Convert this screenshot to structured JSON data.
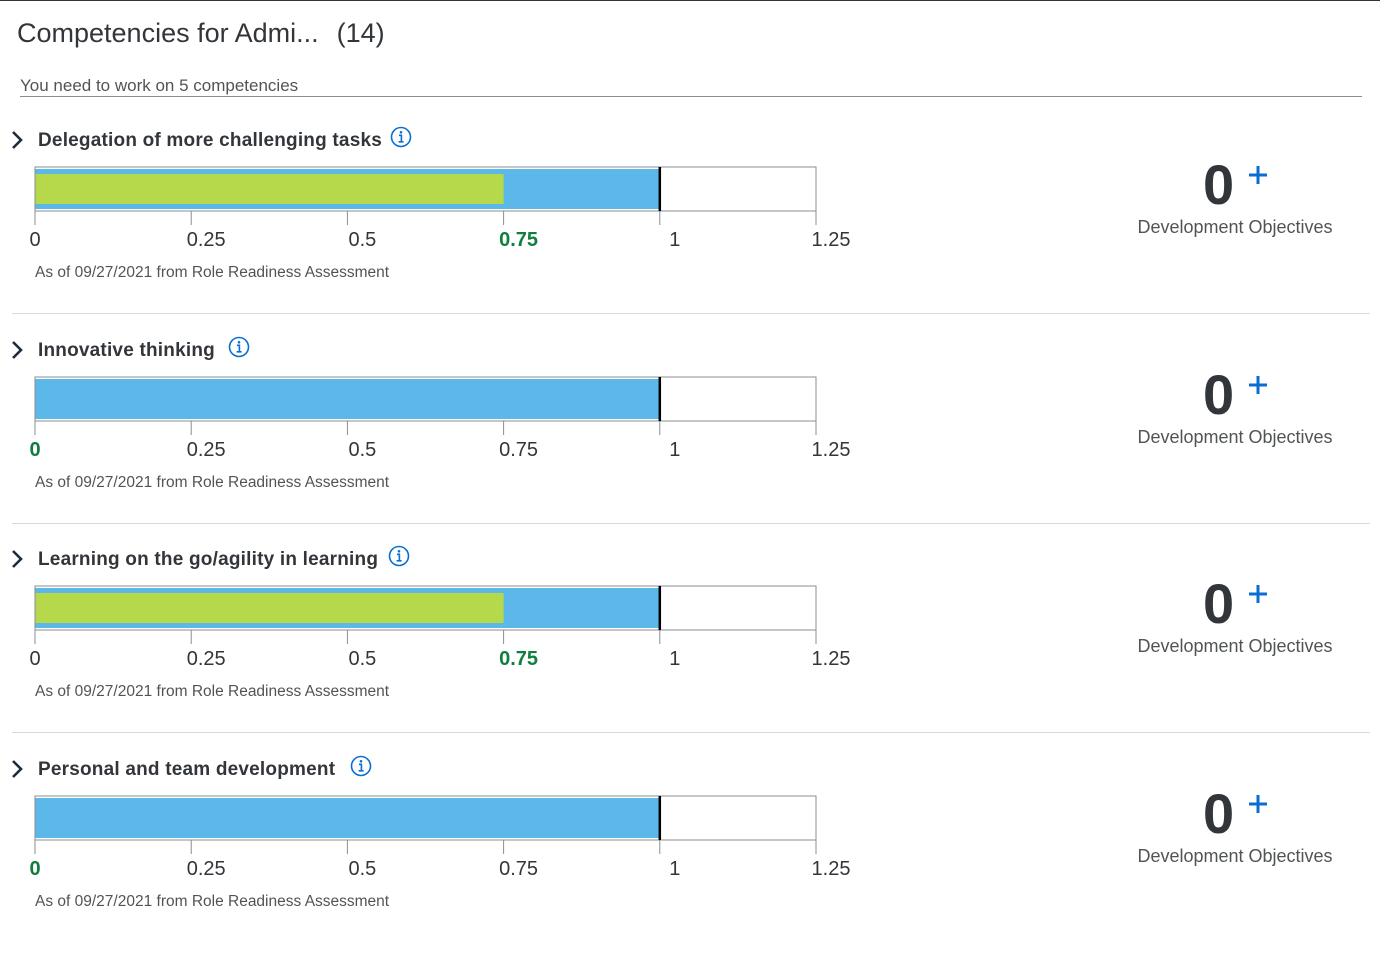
{
  "header": {
    "title": "Competencies for Admi...",
    "count": "(14)",
    "subtitle": "You need to work on 5 competencies"
  },
  "colors": {
    "expected_bar": "#5cb8e8",
    "actual_bar": "#b5d94a",
    "highlight_text": "#107e3e",
    "accent_blue": "#0a6ed1"
  },
  "icons": {
    "expand": "chevron-right-icon",
    "info": "info-circle-icon",
    "add": "plus-icon"
  },
  "scale": {
    "min": 0,
    "max": 1.25,
    "ticks": [
      "0",
      "0.25",
      "0.5",
      "0.75",
      "1",
      "1.25"
    ]
  },
  "competencies": [
    {
      "name": "Delegation of more challenging tasks",
      "expected": 1,
      "actual": 0.75,
      "highlight_tick": "0.75",
      "as_of": "As of 09/27/2021 from Role Readiness Assessment",
      "objectives_count": "0",
      "objectives_label": "Development Objectives"
    },
    {
      "name": "Innovative thinking",
      "expected": 1,
      "actual": 0,
      "highlight_tick": "0",
      "as_of": "As of 09/27/2021 from Role Readiness Assessment",
      "objectives_count": "0",
      "objectives_label": "Development Objectives"
    },
    {
      "name": "Learning on the go/agility in learning",
      "expected": 1,
      "actual": 0.75,
      "highlight_tick": "0.75",
      "as_of": "As of 09/27/2021 from Role Readiness Assessment",
      "objectives_count": "0",
      "objectives_label": "Development Objectives"
    },
    {
      "name": "Personal and team development",
      "expected": 1,
      "actual": 0,
      "highlight_tick": "0",
      "as_of": "As of 09/27/2021 from Role Readiness Assessment",
      "objectives_count": "0",
      "objectives_label": "Development Objectives"
    }
  ]
}
